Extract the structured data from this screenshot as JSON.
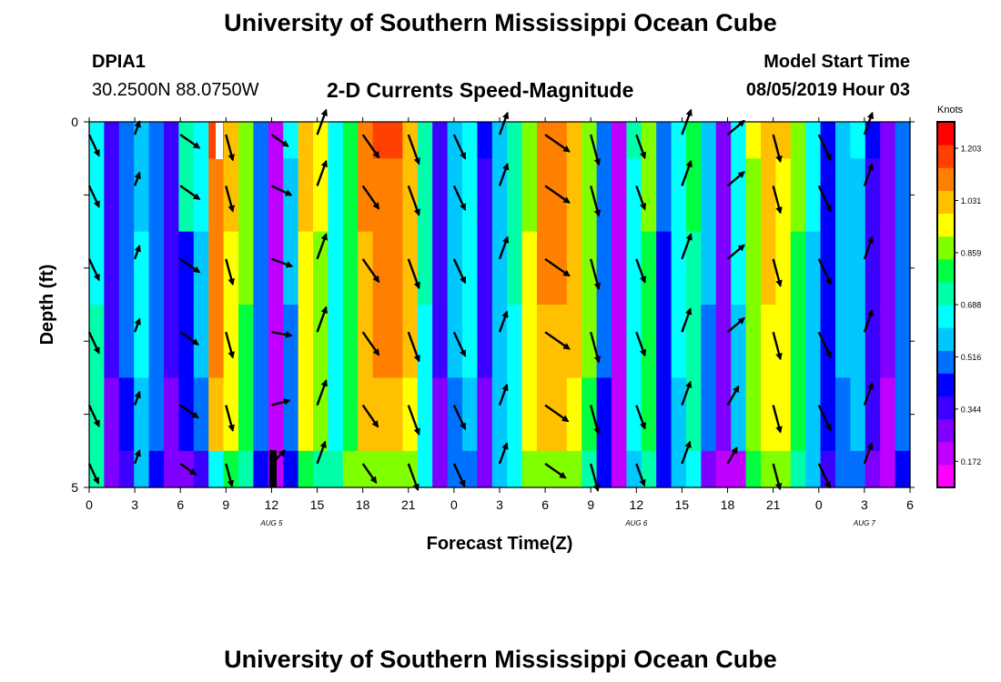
{
  "header": {
    "title": "University of Southern Mississippi Ocean Cube",
    "footer_title": "University of Southern Mississippi Ocean Cube",
    "station_id": "DPIA1",
    "station_coords": "30.2500N 88.0750W",
    "subtitle": "2-D Currents Speed-Magnitude",
    "model_start_label": "Model Start Time",
    "model_start_value": "08/05/2019 Hour 03"
  },
  "colors": {
    "palette": [
      "#ff00ff",
      "#c000ff",
      "#8000ff",
      "#3c00ff",
      "#0000ff",
      "#0070ff",
      "#00c8ff",
      "#00ffff",
      "#00ffaa",
      "#00ff40",
      "#80ff00",
      "#ffff00",
      "#ffc000",
      "#ff8000",
      "#ff4000",
      "#ff0000"
    ],
    "vector_color": "#000000",
    "wet_dry_white": "#ffffff",
    "wet_dry_black": "#000000"
  },
  "chart_data": {
    "type": "heatmap",
    "title": "2-D Currents Speed-Magnitude",
    "xlabel": "Forecast Time(Z)",
    "ylabel": "Depth (ft)",
    "x_range_hours": [
      0,
      54
    ],
    "y_range_ft": [
      0,
      5
    ],
    "x_ticks": [
      {
        "hour": 0,
        "label": "0"
      },
      {
        "hour": 3,
        "label": "3"
      },
      {
        "hour": 6,
        "label": "6"
      },
      {
        "hour": 9,
        "label": "9"
      },
      {
        "hour": 12,
        "label": "12"
      },
      {
        "hour": 15,
        "label": "15"
      },
      {
        "hour": 18,
        "label": "18"
      },
      {
        "hour": 21,
        "label": "21"
      },
      {
        "hour": 24,
        "label": "0"
      },
      {
        "hour": 27,
        "label": "3"
      },
      {
        "hour": 30,
        "label": "6"
      },
      {
        "hour": 33,
        "label": "9"
      },
      {
        "hour": 36,
        "label": "12"
      },
      {
        "hour": 39,
        "label": "15"
      },
      {
        "hour": 42,
        "label": "18"
      },
      {
        "hour": 45,
        "label": "21"
      },
      {
        "hour": 48,
        "label": "0"
      },
      {
        "hour": 51,
        "label": "3"
      },
      {
        "hour": 54,
        "label": "6"
      }
    ],
    "date_labels": [
      {
        "hour": 12,
        "label": "AUG 5"
      },
      {
        "hour": 36,
        "label": "AUG 6"
      },
      {
        "hour": 51,
        "label": "AUG 7"
      }
    ],
    "y_ticks": [
      {
        "depth": 0,
        "label": "0"
      },
      {
        "depth": 1,
        "label": ""
      },
      {
        "depth": 2,
        "label": ""
      },
      {
        "depth": 3,
        "label": ""
      },
      {
        "depth": 4,
        "label": ""
      },
      {
        "depth": 5,
        "label": "5"
      }
    ],
    "colorbar": {
      "units": "Knots",
      "min": 0.086,
      "max": 1.29,
      "levels": 16,
      "tick_values": [
        0.172,
        0.344,
        0.516,
        0.688,
        0.859,
        1.031,
        1.203
      ],
      "tick_labels": [
        "0.172",
        "0.344",
        "0.516",
        "0.688",
        "0.859",
        "1.031",
        "1.203"
      ]
    },
    "depth_layers_ft": [
      0,
      0.5,
      1.5,
      2.5,
      3.5,
      4.5
    ],
    "hourly_speed_knots_by_column": [
      [
        0.64,
        0.64,
        0.68,
        0.7,
        0.72,
        0.76
      ],
      [
        0.34,
        0.34,
        0.33,
        0.32,
        0.3,
        0.25
      ],
      [
        0.48,
        0.48,
        0.48,
        0.47,
        0.45,
        0.38
      ],
      [
        0.6,
        0.6,
        0.62,
        0.62,
        0.6,
        0.54
      ],
      [
        0.52,
        0.52,
        0.5,
        0.48,
        0.47,
        0.43
      ],
      [
        0.38,
        0.36,
        0.35,
        0.33,
        0.3,
        0.24
      ],
      [
        0.72,
        0.74,
        0.4,
        0.4,
        0.4,
        0.28
      ],
      [
        0.64,
        0.62,
        0.6,
        0.56,
        0.52,
        0.37
      ],
      [
        1.2,
        1.1,
        1.08,
        1.08,
        1.05,
        0.62
      ],
      [
        1.05,
        1.0,
        0.98,
        0.97,
        0.95,
        0.82
      ],
      [
        0.88,
        0.86,
        0.84,
        0.82,
        0.8,
        0.72
      ],
      [
        0.52,
        0.5,
        0.5,
        0.5,
        0.48,
        0.45
      ],
      [
        0.18,
        0.18,
        0.18,
        0.18,
        0.17,
        0.17
      ],
      [
        0.62,
        0.58,
        0.56,
        0.52,
        0.5,
        0.45
      ],
      [
        1.06,
        1.0,
        0.98,
        0.95,
        0.92,
        0.8
      ],
      [
        0.96,
        0.92,
        0.9,
        0.88,
        0.86,
        0.76
      ],
      [
        0.66,
        0.64,
        0.64,
        0.62,
        0.62,
        0.7
      ],
      [
        0.82,
        0.8,
        0.8,
        0.8,
        0.82,
        0.86
      ],
      [
        1.1,
        1.08,
        1.06,
        1.05,
        1.0,
        0.86
      ],
      [
        1.15,
        1.12,
        1.1,
        1.08,
        1.05,
        0.9
      ],
      [
        1.15,
        1.12,
        1.1,
        1.08,
        1.05,
        0.88
      ],
      [
        1.05,
        1.05,
        1.02,
        1.0,
        0.96,
        0.86
      ],
      [
        0.72,
        0.7,
        0.7,
        0.68,
        0.66,
        0.62
      ],
      [
        0.36,
        0.34,
        0.33,
        0.32,
        0.3,
        0.28
      ],
      [
        0.58,
        0.56,
        0.55,
        0.54,
        0.52,
        0.47
      ],
      [
        0.68,
        0.66,
        0.64,
        0.62,
        0.6,
        0.52
      ],
      [
        0.4,
        0.38,
        0.36,
        0.34,
        0.3,
        0.27
      ],
      [
        0.58,
        0.56,
        0.56,
        0.56,
        0.57,
        0.6
      ],
      [
        0.72,
        0.7,
        0.7,
        0.68,
        0.66,
        0.64
      ],
      [
        0.9,
        0.9,
        0.92,
        0.92,
        0.94,
        0.86
      ],
      [
        1.1,
        1.08,
        1.08,
        1.05,
        1.0,
        0.86
      ],
      [
        1.12,
        1.1,
        1.08,
        1.06,
        1.02,
        0.88
      ],
      [
        1.05,
        1.05,
        1.02,
        1.0,
        0.96,
        0.85
      ],
      [
        0.9,
        0.88,
        0.86,
        0.85,
        0.82,
        0.76
      ],
      [
        0.52,
        0.5,
        0.5,
        0.48,
        0.46,
        0.44
      ],
      [
        0.22,
        0.22,
        0.21,
        0.2,
        0.2,
        0.18
      ],
      [
        0.7,
        0.68,
        0.68,
        0.66,
        0.64,
        0.6
      ],
      [
        0.86,
        0.84,
        0.82,
        0.8,
        0.78,
        0.7
      ],
      [
        0.5,
        0.48,
        0.46,
        0.44,
        0.42,
        0.4
      ],
      [
        0.66,
        0.64,
        0.64,
        0.62,
        0.6,
        0.55
      ],
      [
        0.8,
        0.78,
        0.76,
        0.74,
        0.72,
        0.62
      ],
      [
        0.58,
        0.56,
        0.54,
        0.52,
        0.48,
        0.3
      ],
      [
        0.3,
        0.3,
        0.28,
        0.26,
        0.24,
        0.2
      ],
      [
        0.64,
        0.64,
        0.62,
        0.6,
        0.58,
        0.22
      ],
      [
        0.92,
        0.9,
        0.9,
        0.88,
        0.86,
        0.8
      ],
      [
        1.05,
        1.02,
        1.0,
        0.98,
        0.96,
        0.86
      ],
      [
        1.0,
        0.98,
        0.96,
        0.94,
        0.92,
        0.86
      ],
      [
        0.86,
        0.84,
        0.82,
        0.8,
        0.78,
        0.74
      ],
      [
        0.64,
        0.62,
        0.6,
        0.6,
        0.58,
        0.55
      ],
      [
        0.44,
        0.43,
        0.42,
        0.41,
        0.4,
        0.38
      ],
      [
        0.58,
        0.56,
        0.55,
        0.54,
        0.52,
        0.47
      ],
      [
        0.62,
        0.6,
        0.6,
        0.6,
        0.58,
        0.52
      ],
      [
        0.4,
        0.38,
        0.38,
        0.36,
        0.34,
        0.3
      ],
      [
        0.28,
        0.26,
        0.26,
        0.24,
        0.23,
        0.2
      ],
      [
        0.52,
        0.5,
        0.5,
        0.48,
        0.48,
        0.44
      ]
    ],
    "vector_depths_ft": [
      0.3,
      1.0,
      2.0,
      3.0,
      4.0,
      4.8
    ],
    "vector_times_h": [
      0,
      3,
      6,
      9,
      12,
      15,
      18,
      21,
      24,
      27,
      30,
      33,
      36,
      39,
      42,
      45,
      48,
      51
    ],
    "vector_directions_deg": [
      [
        155,
        155,
        155,
        155,
        155,
        155
      ],
      [
        20,
        20,
        20,
        20,
        20,
        20
      ],
      [
        125,
        125,
        125,
        125,
        125,
        125
      ],
      [
        165,
        165,
        165,
        165,
        165,
        165
      ],
      [
        125,
        115,
        110,
        100,
        75,
        45
      ],
      [
        20,
        20,
        20,
        20,
        20,
        20
      ],
      [
        145,
        145,
        145,
        145,
        145,
        145
      ],
      [
        160,
        160,
        160,
        160,
        160,
        160
      ],
      [
        155,
        155,
        155,
        155,
        155,
        155
      ],
      [
        20,
        20,
        20,
        20,
        20,
        20
      ],
      [
        125,
        125,
        125,
        125,
        125,
        125
      ],
      [
        165,
        165,
        165,
        165,
        165,
        165
      ],
      [
        160,
        160,
        160,
        160,
        160,
        160
      ],
      [
        20,
        20,
        20,
        20,
        20,
        20
      ],
      [
        50,
        50,
        50,
        50,
        30,
        30
      ],
      [
        165,
        165,
        165,
        165,
        165,
        165
      ],
      [
        155,
        155,
        155,
        155,
        155,
        155
      ],
      [
        20,
        20,
        20,
        20,
        20,
        20
      ]
    ],
    "vector_magnitude_knots": [
      [
        0.75,
        0.75,
        0.75,
        0.75,
        0.75,
        0.7
      ],
      [
        0.45,
        0.45,
        0.45,
        0.45,
        0.45,
        0.45
      ],
      [
        0.75,
        0.75,
        0.75,
        0.7,
        0.7,
        0.6
      ],
      [
        0.85,
        0.85,
        0.85,
        0.85,
        0.85,
        0.75
      ],
      [
        0.65,
        0.7,
        0.7,
        0.65,
        0.6,
        0.6
      ],
      [
        0.85,
        0.85,
        0.85,
        0.85,
        0.85,
        0.75
      ],
      [
        0.9,
        0.9,
        0.9,
        0.9,
        0.85,
        0.75
      ],
      [
        1.0,
        1.0,
        1.0,
        1.0,
        1.0,
        0.9
      ],
      [
        0.85,
        0.85,
        0.85,
        0.85,
        0.85,
        0.8
      ],
      [
        0.75,
        0.75,
        0.75,
        0.7,
        0.7,
        0.7
      ],
      [
        0.95,
        0.95,
        0.95,
        0.95,
        0.9,
        0.8
      ],
      [
        1.0,
        1.0,
        1.0,
        1.0,
        0.95,
        0.9
      ],
      [
        0.8,
        0.8,
        0.8,
        0.8,
        0.8,
        0.75
      ],
      [
        0.85,
        0.85,
        0.85,
        0.8,
        0.8,
        0.75
      ],
      [
        0.7,
        0.7,
        0.7,
        0.7,
        0.7,
        0.6
      ],
      [
        0.9,
        0.9,
        0.9,
        0.9,
        0.9,
        0.85
      ],
      [
        0.9,
        0.9,
        0.9,
        0.9,
        0.9,
        0.85
      ],
      [
        0.75,
        0.75,
        0.75,
        0.75,
        0.75,
        0.7
      ]
    ]
  }
}
